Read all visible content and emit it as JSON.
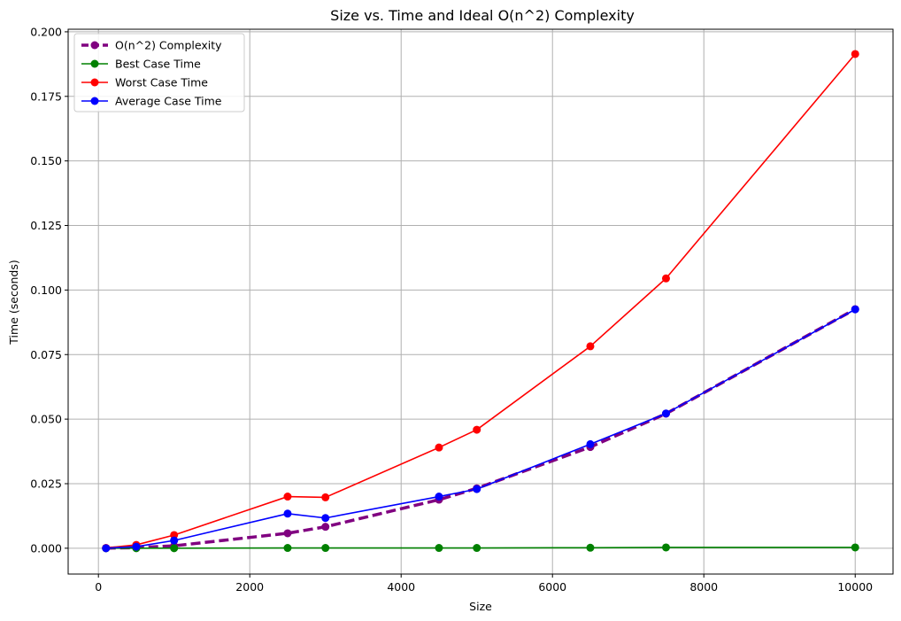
{
  "chart_data": {
    "type": "line",
    "title": "Size vs. Time and Ideal O(n^2) Complexity",
    "xlabel": "Size",
    "ylabel": "Time (seconds)",
    "xlim": [
      -400,
      10500
    ],
    "ylim": [
      -0.01,
      0.201
    ],
    "xticks": [
      "0",
      "2000",
      "4000",
      "6000",
      "8000",
      "10000"
    ],
    "yticks": [
      "0.000",
      "0.025",
      "0.050",
      "0.075",
      "0.100",
      "0.125",
      "0.150",
      "0.175",
      "0.200"
    ],
    "grid": true,
    "legend_position": "top-left",
    "x": [
      100,
      500,
      1000,
      2500,
      3000,
      4500,
      5000,
      6500,
      7500,
      10000
    ],
    "series": [
      {
        "name": "O(n^2) Complexity",
        "color": "#800080",
        "style": "dashed",
        "values": [
          1e-05,
          0.00023,
          0.00093,
          0.0058,
          0.0083,
          0.0188,
          0.0232,
          0.0392,
          0.0521,
          0.0926
        ]
      },
      {
        "name": "Best Case Time",
        "color": "#008000",
        "style": "solid",
        "values": [
          0.0,
          0.0,
          0.0,
          0.0001,
          0.0001,
          0.0001,
          0.0001,
          0.0002,
          0.0003,
          0.0003
        ]
      },
      {
        "name": "Worst Case Time",
        "color": "#ff0000",
        "style": "solid",
        "values": [
          0.0001,
          0.0013,
          0.0051,
          0.02,
          0.0197,
          0.039,
          0.0459,
          0.0782,
          0.1045,
          0.1914
        ]
      },
      {
        "name": "Average Case Time",
        "color": "#0000ff",
        "style": "solid",
        "values": [
          0.0,
          0.0006,
          0.003,
          0.0134,
          0.0117,
          0.02,
          0.0229,
          0.0403,
          0.0522,
          0.0925
        ]
      }
    ]
  }
}
